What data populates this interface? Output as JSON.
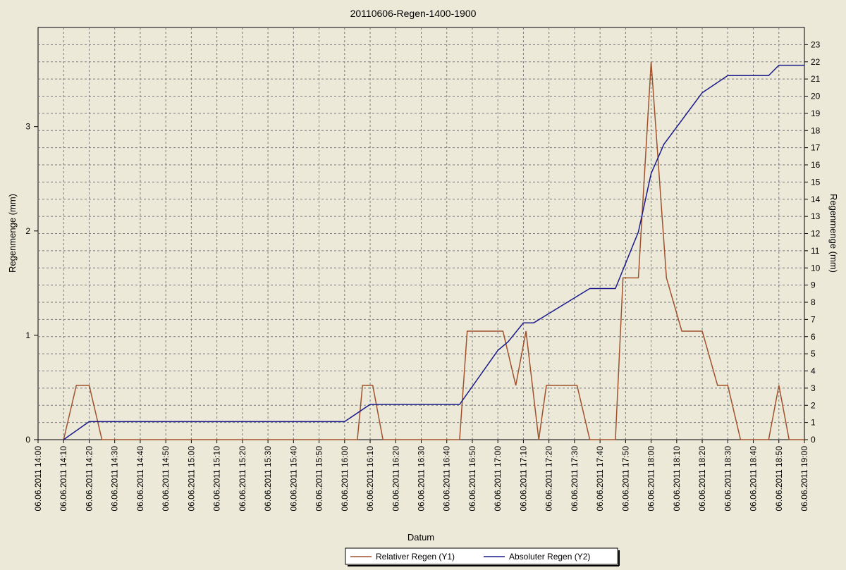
{
  "chart_data": {
    "type": "line",
    "title": "20110606-Regen-1400-1900",
    "xlabel": "Datum",
    "ylabel_left": "Regenmenge (mm)",
    "ylabel_right": "Regenmenge (mm)",
    "xlim": [
      "06.06.2011 14:00",
      "06.06.2011 19:00"
    ],
    "ylim_left": [
      0,
      3.95
    ],
    "ylim_right": [
      0,
      24
    ],
    "y_left_ticks": [
      "0",
      "1",
      "2",
      "3"
    ],
    "y_right_ticks": [
      "0",
      "1",
      "2",
      "3",
      "4",
      "5",
      "6",
      "7",
      "8",
      "9",
      "10",
      "11",
      "12",
      "13",
      "14",
      "15",
      "16",
      "17",
      "18",
      "19",
      "20",
      "21",
      "22",
      "23"
    ],
    "x_ticks": [
      "06.06.2011 14:00",
      "06.06.2011 14:10",
      "06.06.2011 14:20",
      "06.06.2011 14:30",
      "06.06.2011 14:40",
      "06.06.2011 14:50",
      "06.06.2011 15:00",
      "06.06.2011 15:10",
      "06.06.2011 15:20",
      "06.06.2011 15:30",
      "06.06.2011 15:40",
      "06.06.2011 15:50",
      "06.06.2011 16:00",
      "06.06.2011 16:10",
      "06.06.2011 16:20",
      "06.06.2011 16:30",
      "06.06.2011 16:40",
      "06.06.2011 16:50",
      "06.06.2011 17:00",
      "06.06.2011 17:10",
      "06.06.2011 17:20",
      "06.06.2011 17:30",
      "06.06.2011 17:40",
      "06.06.2011 17:50",
      "06.06.2011 18:00",
      "06.06.2011 18:10",
      "06.06.2011 18:20",
      "06.06.2011 18:30",
      "06.06.2011 18:40",
      "06.06.2011 18:50",
      "06.06.2011 19:00"
    ],
    "grid": true,
    "legend_position": "bottom-center",
    "series": [
      {
        "name": "Relativer Regen (Y1)",
        "axis": "left",
        "color": "#a0522d",
        "x": [
          "06.06.2011 14:10",
          "06.06.2011 14:15",
          "06.06.2011 14:20",
          "06.06.2011 14:25",
          "06.06.2011 16:05",
          "06.06.2011 16:07",
          "06.06.2011 16:11",
          "06.06.2011 16:15",
          "06.06.2011 16:45",
          "06.06.2011 16:48",
          "06.06.2011 17:02",
          "06.06.2011 17:07",
          "06.06.2011 17:11",
          "06.06.2011 17:16",
          "06.06.2011 17:19",
          "06.06.2011 17:31",
          "06.06.2011 17:36",
          "06.06.2011 17:46",
          "06.06.2011 17:49",
          "06.06.2011 17:55",
          "06.06.2011 18:00",
          "06.06.2011 18:06",
          "06.06.2011 18:12",
          "06.06.2011 18:20",
          "06.06.2011 18:26",
          "06.06.2011 18:30",
          "06.06.2011 18:35",
          "06.06.2011 18:46",
          "06.06.2011 18:50",
          "06.06.2011 18:54",
          "06.06.2011 19:00"
        ],
        "y": [
          0,
          0.52,
          0.52,
          0,
          0,
          0.52,
          0.52,
          0,
          0,
          1.04,
          1.04,
          0.52,
          1.04,
          0,
          0.52,
          0.52,
          0,
          0,
          1.55,
          1.55,
          3.62,
          1.55,
          1.04,
          1.04,
          0.52,
          0.52,
          0,
          0,
          0.52,
          0,
          0
        ]
      },
      {
        "name": "Absoluter Regen (Y2)",
        "axis": "right",
        "color": "#1a1a8c",
        "x": [
          "06.06.2011 14:10",
          "06.06.2011 14:20",
          "06.06.2011 16:00",
          "06.06.2011 16:10",
          "06.06.2011 16:45",
          "06.06.2011 17:00",
          "06.06.2011 17:04",
          "06.06.2011 17:10",
          "06.06.2011 17:14",
          "06.06.2011 17:36",
          "06.06.2011 17:46",
          "06.06.2011 17:55",
          "06.06.2011 18:00",
          "06.06.2011 18:05",
          "06.06.2011 18:20",
          "06.06.2011 18:30",
          "06.06.2011 18:46",
          "06.06.2011 18:50",
          "06.06.2011 19:00"
        ],
        "y": [
          0,
          1.05,
          1.05,
          2.05,
          2.05,
          5.2,
          5.7,
          6.8,
          6.8,
          8.8,
          8.8,
          12.1,
          15.5,
          17.2,
          20.2,
          21.2,
          21.2,
          21.8,
          21.8
        ]
      }
    ]
  }
}
